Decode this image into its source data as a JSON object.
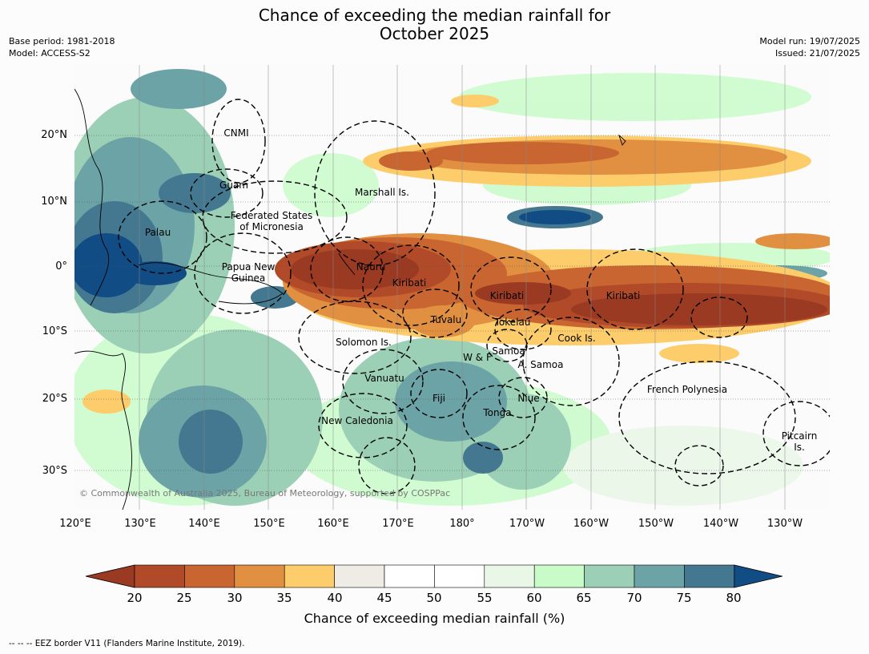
{
  "title": {
    "line1": "Chance of exceeding the median rainfall for",
    "line2": "October 2025"
  },
  "meta": {
    "base_period": "Base period: 1981-2018",
    "model": "Model: ACCESS-S2",
    "model_run": "Model run: 19/07/2025",
    "issued": "Issued: 21/07/2025"
  },
  "lat_labels": [
    "20°N",
    "10°N",
    "0°",
    "10°S",
    "20°S",
    "30°S"
  ],
  "lon_labels": [
    "120°E",
    "130°E",
    "140°E",
    "150°E",
    "160°E",
    "170°E",
    "180°",
    "170°W",
    "160°W",
    "150°W",
    "140°W",
    "130°W"
  ],
  "regions": [
    {
      "name": "CNMI"
    },
    {
      "name": "Guam"
    },
    {
      "name": "Marshall Is."
    },
    {
      "name": "Federated States"
    },
    {
      "name": "of Micronesia"
    },
    {
      "name": "Palau"
    },
    {
      "name": "Papua New"
    },
    {
      "name": "Guinea"
    },
    {
      "name": "Nauru"
    },
    {
      "name": "Kiribati"
    },
    {
      "name": "Kiribati"
    },
    {
      "name": "Kiribati"
    },
    {
      "name": "Tuvalu"
    },
    {
      "name": "Tokelau"
    },
    {
      "name": "Solomon Is."
    },
    {
      "name": "Cook Is."
    },
    {
      "name": "Samoa"
    },
    {
      "name": "W & F"
    },
    {
      "name": "A. Samoa"
    },
    {
      "name": "Vanuatu"
    },
    {
      "name": "Fiji"
    },
    {
      "name": "Niue"
    },
    {
      "name": "Tonga"
    },
    {
      "name": "French Polynesia"
    },
    {
      "name": "New Caledonia"
    },
    {
      "name": "Pitcairn"
    },
    {
      "name": "Is."
    }
  ],
  "copyright": "© Commonwealth of Australia 2025, Bureau of Meteorology, supported by COSPPac",
  "colorbar": {
    "ticks": [
      "20",
      "25",
      "30",
      "35",
      "40",
      "45",
      "50",
      "55",
      "60",
      "65",
      "70",
      "75",
      "80"
    ],
    "colors": [
      "#9a3a22",
      "#b04a28",
      "#c96530",
      "#e09040",
      "#fccd6a",
      "#efece6",
      "#ffffff",
      "#ffffff",
      "#e8f7e6",
      "#c9fbc9",
      "#9bcfb6",
      "#6ca3a6",
      "#447891",
      "#124c85"
    ],
    "label": "Chance of exceeding median rainfall (%)"
  },
  "footnote": "--  --  -- EEZ border V11 (Flanders Marine Institute, 2019)."
}
